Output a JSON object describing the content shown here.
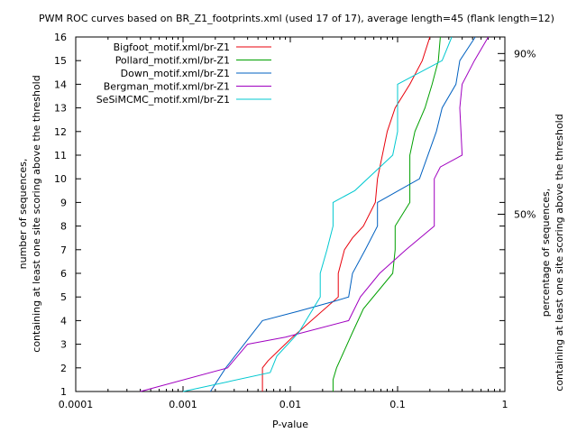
{
  "chart_data": {
    "type": "line",
    "title": "PWM ROC curves based on BR_Z1_footprints.xml (used 17 of 17), average length=45 (flank length=12)",
    "xlabel": "P-value",
    "ylabel_line1": "number of sequences,",
    "ylabel_line2": "containing at least one site scoring above the threshold",
    "y2label_line1": "percentage of sequences,",
    "y2label_line2": "containing at least one site scoring above the threshold",
    "x_scale": "log",
    "xlim": [
      0.0001,
      1
    ],
    "ylim": [
      1,
      16
    ],
    "x_ticks": [
      {
        "value": 0.0001,
        "label": "0.0001"
      },
      {
        "value": 0.001,
        "label": "0.001"
      },
      {
        "value": 0.01,
        "label": "0.01"
      },
      {
        "value": 0.1,
        "label": "0.1"
      },
      {
        "value": 1,
        "label": "1"
      }
    ],
    "y_ticks": [
      1,
      2,
      3,
      4,
      5,
      6,
      7,
      8,
      9,
      10,
      11,
      12,
      13,
      14,
      15,
      16
    ],
    "y2_ticks": [
      {
        "value": 8.5,
        "label": "50%"
      },
      {
        "value": 15.3,
        "label": "90%"
      }
    ],
    "grid": false,
    "legend_position": "top-left",
    "series": [
      {
        "name": "Bigfoot_motif.xml/br-Z1",
        "color": "#e8000b",
        "x": [
          0.0055,
          0.0055,
          0.0062,
          0.0105,
          0.028,
          0.028,
          0.032,
          0.038,
          0.048,
          0.062,
          0.065,
          0.08,
          0.095,
          0.13,
          0.17,
          0.2
        ],
        "y": [
          1,
          2,
          2.3,
          3.3,
          5,
          6,
          7,
          7.5,
          8,
          9,
          10,
          12,
          13,
          14,
          15,
          16
        ]
      },
      {
        "name": "Pollard_motif.xml/br-Z1",
        "color": "#00a000",
        "x": [
          0.025,
          0.025,
          0.027,
          0.038,
          0.048,
          0.09,
          0.095,
          0.095,
          0.13,
          0.13,
          0.145,
          0.18,
          0.21,
          0.24,
          0.25
        ],
        "y": [
          1,
          1.5,
          2,
          3.5,
          4.5,
          6,
          7,
          8,
          9,
          11,
          12,
          13,
          14,
          15,
          16
        ]
      },
      {
        "name": "Down_motif.xml/br-Z1",
        "color": "#0060c0",
        "x": [
          0.0018,
          0.0025,
          0.0055,
          0.012,
          0.025,
          0.035,
          0.038,
          0.05,
          0.065,
          0.065,
          0.16,
          0.23,
          0.26,
          0.35,
          0.38,
          0.53
        ],
        "y": [
          1,
          2,
          4,
          4.4,
          4.8,
          5,
          6,
          7,
          8,
          9,
          10,
          12,
          13,
          14,
          15,
          16
        ]
      },
      {
        "name": "Bergman_motif.xml/br-Z1",
        "color": "#a000c0",
        "x": [
          0.0004,
          0.0026,
          0.004,
          0.009,
          0.035,
          0.045,
          0.068,
          0.12,
          0.22,
          0.22,
          0.25,
          0.4,
          0.38,
          0.4,
          0.52,
          0.7
        ],
        "y": [
          1,
          2,
          3,
          3.3,
          4,
          5,
          6,
          7,
          8,
          10,
          10.5,
          11,
          13,
          14,
          15,
          16
        ]
      },
      {
        "name": "SeSiMCMC_motif.xml/br-Z1",
        "color": "#00c8d0",
        "x": [
          0.001,
          0.0065,
          0.0075,
          0.012,
          0.019,
          0.019,
          0.022,
          0.025,
          0.025,
          0.04,
          0.09,
          0.1,
          0.1,
          0.1,
          0.26,
          0.32
        ],
        "y": [
          1,
          1.8,
          2.5,
          3.5,
          5,
          6,
          7,
          8,
          9,
          9.5,
          11,
          12,
          13,
          14,
          15,
          16
        ]
      }
    ]
  }
}
